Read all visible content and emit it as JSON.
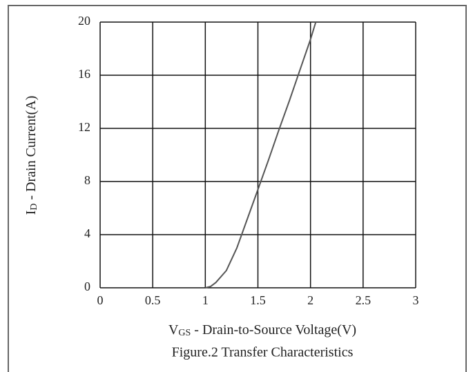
{
  "chart_data": {
    "type": "line",
    "title": "Figure.2 Transfer Characteristics",
    "xlabel": [
      "V",
      "GS",
      " - Drain-to-Source Voltage(V)"
    ],
    "ylabel": [
      "I",
      "D",
      " - Drain Current(A)"
    ],
    "x": [
      1.0,
      1.05,
      1.1,
      1.2,
      1.3,
      1.4,
      1.5,
      1.6,
      1.7,
      1.8,
      1.9,
      2.0,
      2.05
    ],
    "values": [
      0,
      0.1,
      0.4,
      1.3,
      3.0,
      5.2,
      7.4,
      9.6,
      11.9,
      14.1,
      16.4,
      18.7,
      20
    ],
    "color": "#555555",
    "xlim": [
      0,
      3
    ],
    "xticks": [
      0,
      0.5,
      1,
      1.5,
      2,
      2.5,
      3
    ],
    "ylim": [
      0,
      20
    ],
    "yticks": [
      0,
      4,
      8,
      12,
      16,
      20
    ],
    "grid": true
  }
}
